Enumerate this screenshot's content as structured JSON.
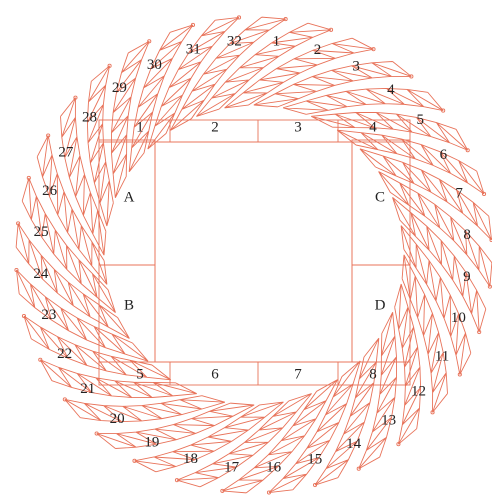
{
  "arms": {
    "labels": [
      "1",
      "2",
      "3",
      "4",
      "5",
      "6",
      "7",
      "8",
      "9",
      "10",
      "11",
      "12",
      "13",
      "14",
      "15",
      "16",
      "17",
      "18",
      "19",
      "20",
      "21",
      "22",
      "23",
      "24",
      "25",
      "26",
      "27",
      "28",
      "29",
      "30",
      "31",
      "32"
    ]
  },
  "sides": {
    "labels": [
      "A",
      "B",
      "C",
      "D"
    ]
  },
  "frame": {
    "top": [
      "1",
      "2",
      "3",
      "4"
    ],
    "bottom": [
      "5",
      "6",
      "7",
      "8"
    ]
  }
}
